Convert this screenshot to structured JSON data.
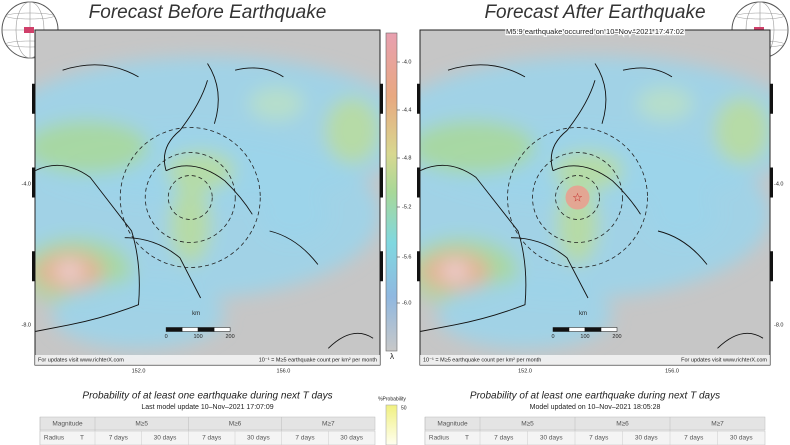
{
  "panels": [
    {
      "title": "Forecast Before Earthquake",
      "lat_labels": [
        "-4.0",
        "-8.0"
      ],
      "lon_labels": [
        "152.0",
        "156.0"
      ],
      "scale": {
        "unit": "km",
        "ticks": [
          "0",
          "100",
          "200"
        ]
      },
      "footer_left": "For updates visit www.richterX.com",
      "footer_right": "10⁻¹ = M≥5 earthquake count per km² per month",
      "table_title": "Probability of at least one earthquake during next T days",
      "table_subtitle": "Last model update 10–Nov–2021 17:07:09",
      "table": {
        "header": [
          "Magnitude",
          "M≥5",
          "M≥6",
          "M≥7"
        ],
        "rows": [
          [
            "Radius",
            "T",
            "7 days",
            "30 days",
            "7 days",
            "30 days",
            "7 days",
            "30 days"
          ]
        ]
      }
    },
    {
      "title": "Forecast After Earthquake",
      "banner": "M5.9 earthquake occurred on 10–Nov–2021 17:47:02",
      "lat_labels": [
        "-4.0",
        "-8.0"
      ],
      "lon_labels": [
        "152.0",
        "156.0"
      ],
      "scale": {
        "unit": "km",
        "ticks": [
          "0",
          "100",
          "200"
        ]
      },
      "footer_left": "10⁻¹ = M≥5 earthquake count per km² per month",
      "footer_right": "For updates visit www.richterX.com",
      "table_title": "Probability of at least one earthquake during next T days",
      "table_subtitle": "Model updated on 10–Nov–2021 18:05:28",
      "table": {
        "header": [
          "Magnitude",
          "M≥5",
          "M≥6",
          "M≥7"
        ],
        "rows": [
          [
            "Radius",
            "T",
            "7 days",
            "30 days",
            "7 days",
            "30 days",
            "7 days",
            "30 days"
          ]
        ]
      }
    }
  ],
  "colorbar": {
    "ticks": [
      "-4.0",
      "-4.4",
      "-4.8",
      "-5.2",
      "-5.6",
      "-6.0"
    ],
    "symbol": "λ",
    "prob_label": "%Probability",
    "prob_tick": "50"
  }
}
